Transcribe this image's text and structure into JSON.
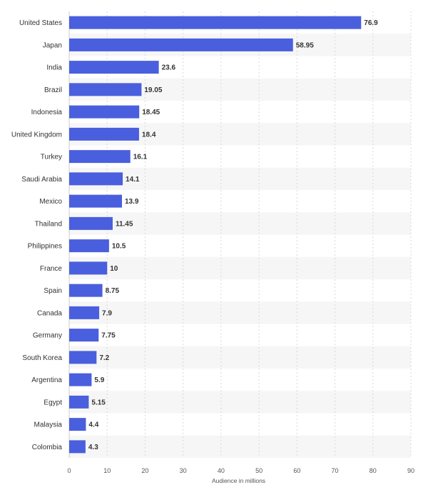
{
  "chart_data": {
    "type": "bar",
    "orientation": "horizontal",
    "categories": [
      "United States",
      "Japan",
      "India",
      "Brazil",
      "Indonesia",
      "United Kingdom",
      "Turkey",
      "Saudi Arabia",
      "Mexico",
      "Thailand",
      "Philippines",
      "France",
      "Spain",
      "Canada",
      "Germany",
      "South Korea",
      "Argentina",
      "Egypt",
      "Malaysia",
      "Colombia"
    ],
    "values": [
      76.9,
      58.95,
      23.6,
      19.05,
      18.45,
      18.4,
      16.1,
      14.1,
      13.9,
      11.45,
      10.5,
      10,
      8.75,
      7.9,
      7.75,
      7.2,
      5.9,
      5.15,
      4.4,
      4.3
    ],
    "value_labels": [
      "76.9",
      "58.95",
      "23.6",
      "19.05",
      "18.45",
      "18.4",
      "16.1",
      "14.1",
      "13.9",
      "11.45",
      "10.5",
      "10",
      "8.75",
      "7.9",
      "7.75",
      "7.2",
      "5.9",
      "5.15",
      "4.4",
      "4.3"
    ],
    "title": "",
    "xlabel": "Audience in millions",
    "ylabel": "",
    "xlim": [
      0,
      90
    ],
    "xticks": [
      0,
      10,
      20,
      30,
      40,
      50,
      60,
      70,
      80,
      90
    ],
    "grid": true,
    "bar_color": "#4a5fdd",
    "stripe_color": "#f6f6f6"
  }
}
